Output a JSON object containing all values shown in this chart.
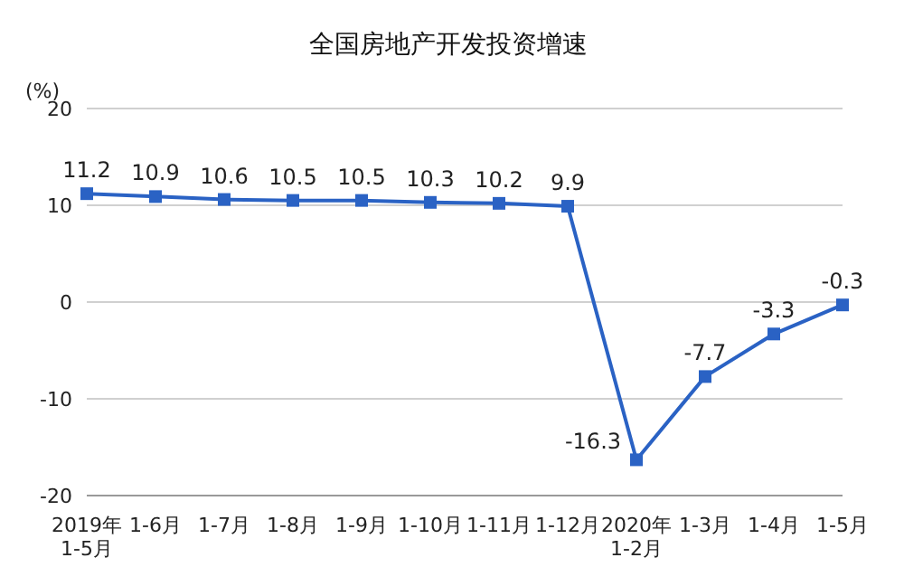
{
  "chart_data": {
    "type": "line",
    "title": "全国房地产开发投资增速",
    "ylabel": "(%)",
    "categories": [
      "2019年\n1-5月",
      "1-6月",
      "1-7月",
      "1-8月",
      "1-9月",
      "1-10月",
      "1-11月",
      "1-12月",
      "2020年\n1-2月",
      "1-3月",
      "1-4月",
      "1-5月"
    ],
    "series": [
      {
        "color": "#2a62c4",
        "values": [
          11.2,
          10.9,
          10.6,
          10.5,
          10.5,
          10.3,
          10.2,
          9.9,
          -16.3,
          -7.7,
          -3.3,
          -0.3
        ]
      }
    ],
    "ylim": [
      -20,
      20
    ],
    "yticks": [
      -20,
      -10,
      0,
      10,
      20
    ],
    "grid": "y",
    "marker": "square",
    "line_style": "solid",
    "data_labels": true
  }
}
